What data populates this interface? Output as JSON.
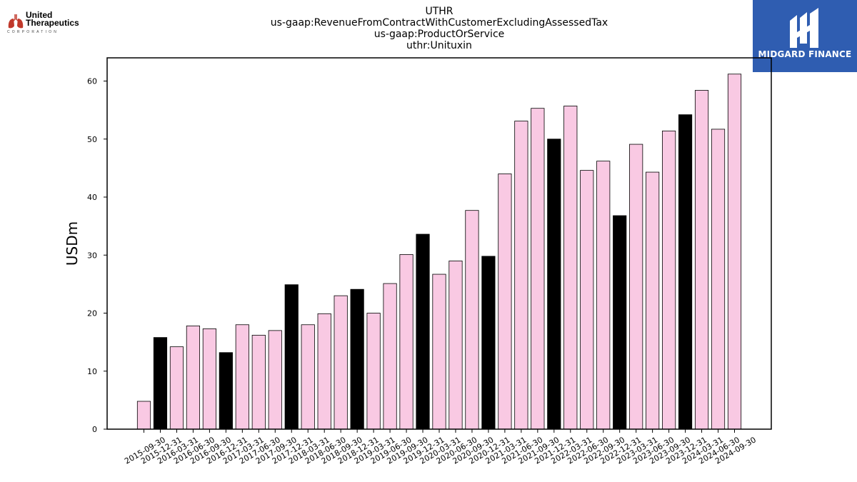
{
  "header": {
    "title_lines": [
      "UTHR",
      "us-gaap:RevenueFromContractWithCustomerExcludingAssessedTax",
      "us-gaap:ProductOrService",
      "uthr:Unituxin"
    ]
  },
  "company_logo": {
    "name_line1": "United",
    "name_line2": "Therapeutics",
    "sub": "CORPORATION"
  },
  "brand_badge": {
    "name": "MIDGARD FINANCE",
    "color": "#2f5db1"
  },
  "colors": {
    "quarter_bar": "#f9c9e3",
    "year_end_bar": "#000000"
  },
  "chart_data": {
    "type": "bar",
    "ylabel": "USDm",
    "xlabel": "",
    "ylim": [
      0,
      64
    ],
    "yticks": [
      0,
      10,
      20,
      30,
      40,
      50,
      60
    ],
    "grid": false,
    "categories": [
      "2015-09-30",
      "2015-12-31",
      "2016-03-31",
      "2016-06-30",
      "2016-09-30",
      "2016-12-31",
      "2017-03-31",
      "2017-06-30",
      "2017-09-30",
      "2017-12-31",
      "2018-03-31",
      "2018-06-30",
      "2018-09-30",
      "2018-12-31",
      "2019-03-31",
      "2019-06-30",
      "2019-09-30",
      "2019-12-31",
      "2020-03-31",
      "2020-06-30",
      "2020-09-30",
      "2020-12-31",
      "2021-03-31",
      "2021-06-30",
      "2021-09-30",
      "2021-12-31",
      "2022-03-31",
      "2022-06-30",
      "2022-09-30",
      "2022-12-31",
      "2023-03-31",
      "2023-06-30",
      "2023-09-30",
      "2023-12-31",
      "2024-03-31",
      "2024-06-30",
      "2024-09-30"
    ],
    "values": [
      4.8,
      15.8,
      14.2,
      17.8,
      17.3,
      13.2,
      18.0,
      16.2,
      17.0,
      24.9,
      18.0,
      19.9,
      23.0,
      24.1,
      20.0,
      25.1,
      30.1,
      33.6,
      26.7,
      29.0,
      37.7,
      29.8,
      44.0,
      53.1,
      55.3,
      50.0,
      55.7,
      44.6,
      46.2,
      36.8,
      49.1,
      44.3,
      51.4,
      54.2,
      58.4,
      51.7,
      61.2
    ]
  }
}
